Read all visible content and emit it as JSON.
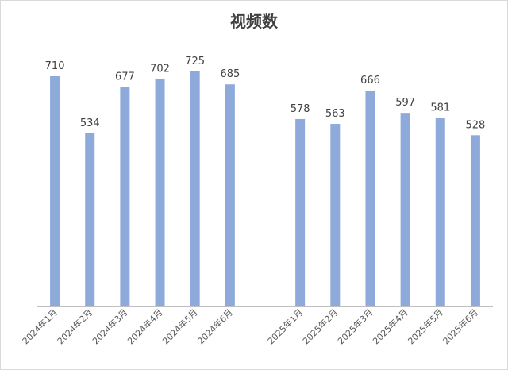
{
  "chart_data": {
    "type": "bar",
    "title": "视频数",
    "categories": [
      "2024年1月",
      "2024年2月",
      "2024年3月",
      "2024年4月",
      "2024年5月",
      "2024年6月",
      "",
      "2025年1月",
      "2025年2月",
      "2025年3月",
      "2025年4月",
      "2025年5月",
      "2025年6月"
    ],
    "values": [
      710,
      534,
      677,
      702,
      725,
      685,
      null,
      578,
      563,
      666,
      597,
      581,
      528
    ],
    "ylim": [
      0,
      800
    ],
    "grid": false,
    "legend": "none",
    "bar_color": "#8eaadb"
  }
}
